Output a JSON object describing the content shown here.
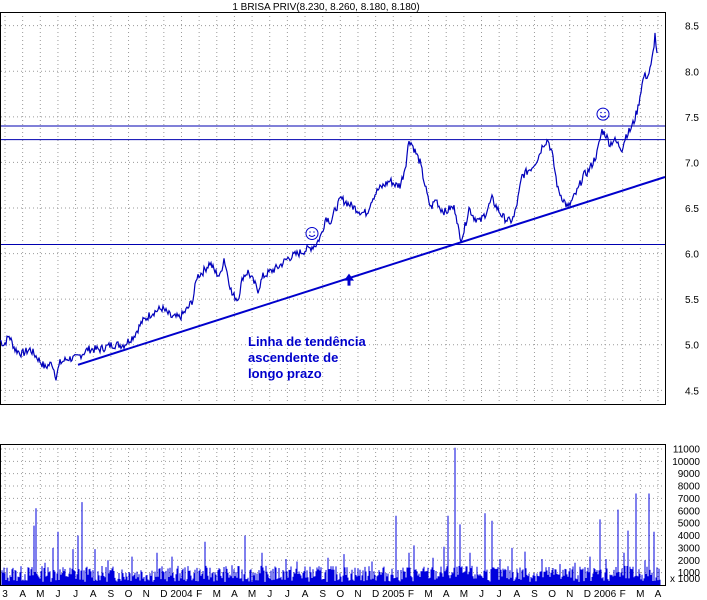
{
  "chart_data": {
    "type": "line",
    "title": "1 BRISA PRIV(8.230, 8.260, 8.180, 8.180)",
    "price_axis": {
      "range": [
        4.35,
        8.65
      ],
      "ticks": [
        "8.5",
        "8.0",
        "7.5",
        "7.0",
        "6.5",
        "6.0",
        "5.5",
        "5.0",
        "4.5"
      ]
    },
    "volume_axis": {
      "range": [
        0,
        11400
      ],
      "ticks": [
        "11000",
        "10000",
        "9000",
        "8000",
        "7000",
        "6000",
        "5000",
        "4000",
        "3000",
        "2000",
        "1000"
      ],
      "multiplier_label": "x 1000"
    },
    "x_labels": [
      "3",
      "A",
      "M",
      "J",
      "J",
      "A",
      "S",
      "O",
      "N",
      "D",
      "2004",
      "F",
      "M",
      "A",
      "M",
      "J",
      "J",
      "A",
      "S",
      "O",
      "N",
      "D",
      "2005",
      "F",
      "M",
      "A",
      "M",
      "J",
      "J",
      "A",
      "S",
      "O",
      "N",
      "D",
      "2006",
      "F",
      "M",
      "A"
    ],
    "price_anchors": [
      [
        0,
        5.05
      ],
      [
        4,
        5.0
      ],
      [
        9,
        5.1
      ],
      [
        15,
        4.95
      ],
      [
        22,
        4.9
      ],
      [
        30,
        4.95
      ],
      [
        38,
        4.85
      ],
      [
        45,
        4.75
      ],
      [
        52,
        4.8
      ],
      [
        56,
        4.65
      ],
      [
        60,
        4.8
      ],
      [
        68,
        4.85
      ],
      [
        76,
        4.85
      ],
      [
        88,
        4.95
      ],
      [
        100,
        4.95
      ],
      [
        112,
        5.0
      ],
      [
        124,
        5.0
      ],
      [
        134,
        5.1
      ],
      [
        142,
        5.25
      ],
      [
        152,
        5.35
      ],
      [
        162,
        5.4
      ],
      [
        172,
        5.3
      ],
      [
        180,
        5.3
      ],
      [
        188,
        5.4
      ],
      [
        193,
        5.5
      ],
      [
        197,
        5.75
      ],
      [
        203,
        5.8
      ],
      [
        210,
        5.9
      ],
      [
        215,
        5.8
      ],
      [
        220,
        5.75
      ],
      [
        224,
        5.95
      ],
      [
        228,
        5.75
      ],
      [
        232,
        5.55
      ],
      [
        238,
        5.5
      ],
      [
        243,
        5.75
      ],
      [
        248,
        5.8
      ],
      [
        253,
        5.7
      ],
      [
        258,
        5.6
      ],
      [
        263,
        5.75
      ],
      [
        270,
        5.8
      ],
      [
        278,
        5.85
      ],
      [
        288,
        5.95
      ],
      [
        298,
        6.0
      ],
      [
        308,
        6.05
      ],
      [
        316,
        6.1
      ],
      [
        321,
        6.2
      ],
      [
        326,
        6.4
      ],
      [
        331,
        6.35
      ],
      [
        336,
        6.5
      ],
      [
        341,
        6.6
      ],
      [
        348,
        6.55
      ],
      [
        355,
        6.5
      ],
      [
        362,
        6.45
      ],
      [
        367,
        6.45
      ],
      [
        372,
        6.6
      ],
      [
        378,
        6.7
      ],
      [
        384,
        6.75
      ],
      [
        390,
        6.8
      ],
      [
        396,
        6.75
      ],
      [
        400,
        6.75
      ],
      [
        403,
        6.85
      ],
      [
        406,
        7.0
      ],
      [
        409,
        7.25
      ],
      [
        412,
        7.2
      ],
      [
        416,
        7.1
      ],
      [
        420,
        7.0
      ],
      [
        424,
        6.8
      ],
      [
        428,
        6.6
      ],
      [
        431,
        6.5
      ],
      [
        436,
        6.6
      ],
      [
        440,
        6.5
      ],
      [
        446,
        6.45
      ],
      [
        450,
        6.5
      ],
      [
        454,
        6.5
      ],
      [
        456,
        6.45
      ],
      [
        460,
        6.15
      ],
      [
        464,
        6.25
      ],
      [
        469,
        6.5
      ],
      [
        474,
        6.4
      ],
      [
        480,
        6.35
      ],
      [
        486,
        6.45
      ],
      [
        492,
        6.6
      ],
      [
        497,
        6.5
      ],
      [
        503,
        6.4
      ],
      [
        510,
        6.35
      ],
      [
        514,
        6.4
      ],
      [
        518,
        6.6
      ],
      [
        522,
        6.85
      ],
      [
        527,
        6.9
      ],
      [
        532,
        6.95
      ],
      [
        538,
        7.05
      ],
      [
        543,
        7.2
      ],
      [
        548,
        7.25
      ],
      [
        552,
        7.1
      ],
      [
        555,
        6.9
      ],
      [
        558,
        6.7
      ],
      [
        563,
        6.6
      ],
      [
        568,
        6.5
      ],
      [
        573,
        6.6
      ],
      [
        578,
        6.7
      ],
      [
        583,
        6.85
      ],
      [
        588,
        6.9
      ],
      [
        593,
        7.0
      ],
      [
        597,
        7.1
      ],
      [
        602,
        7.35
      ],
      [
        606,
        7.3
      ],
      [
        610,
        7.2
      ],
      [
        614,
        7.25
      ],
      [
        618,
        7.2
      ],
      [
        622,
        7.15
      ],
      [
        626,
        7.3
      ],
      [
        630,
        7.35
      ],
      [
        634,
        7.45
      ],
      [
        638,
        7.6
      ],
      [
        641,
        7.8
      ],
      [
        644,
        7.95
      ],
      [
        648,
        7.95
      ],
      [
        651,
        8.05
      ],
      [
        653,
        8.2
      ],
      [
        655,
        8.4
      ],
      [
        657,
        8.2
      ]
    ],
    "horizontal_levels": [
      7.4,
      7.25,
      6.1
    ],
    "trendline": [
      [
        78,
        4.78
      ],
      [
        665,
        6.84
      ]
    ],
    "markers": [
      {
        "type": "smiley",
        "x": 312,
        "y": 6.22
      },
      {
        "type": "smiley",
        "x": 603,
        "y": 7.53
      },
      {
        "type": "arrow-up",
        "x": 349,
        "y": 5.78
      }
    ],
    "volume_spikes": [
      [
        34,
        4800
      ],
      [
        36,
        6200
      ],
      [
        45,
        1800
      ],
      [
        53,
        3000
      ],
      [
        58,
        4300
      ],
      [
        73,
        2900
      ],
      [
        78,
        4000
      ],
      [
        82,
        6700
      ],
      [
        95,
        2900
      ],
      [
        108,
        2000
      ],
      [
        132,
        2300
      ],
      [
        157,
        2600
      ],
      [
        172,
        2300
      ],
      [
        205,
        3500
      ],
      [
        232,
        1600
      ],
      [
        245,
        4000
      ],
      [
        262,
        2600
      ],
      [
        286,
        2100
      ],
      [
        297,
        1900
      ],
      [
        328,
        2200
      ],
      [
        344,
        2500
      ],
      [
        372,
        1900
      ],
      [
        396,
        5600
      ],
      [
        409,
        2600
      ],
      [
        414,
        3200
      ],
      [
        433,
        2200
      ],
      [
        444,
        3100
      ],
      [
        448,
        5600
      ],
      [
        455,
        11100
      ],
      [
        460,
        4900
      ],
      [
        470,
        2600
      ],
      [
        485,
        5800
      ],
      [
        492,
        5200
      ],
      [
        500,
        2100
      ],
      [
        512,
        3000
      ],
      [
        525,
        2700
      ],
      [
        542,
        2100
      ],
      [
        560,
        1700
      ],
      [
        575,
        1800
      ],
      [
        590,
        2300
      ],
      [
        600,
        5300
      ],
      [
        606,
        2100
      ],
      [
        618,
        6100
      ],
      [
        624,
        2600
      ],
      [
        628,
        4400
      ],
      [
        636,
        7400
      ],
      [
        645,
        2000
      ],
      [
        649,
        7400
      ],
      [
        654,
        4300
      ]
    ],
    "annotation": [
      "Linha de tendência",
      "ascendente de",
      "longo prazo"
    ],
    "grid": true
  }
}
